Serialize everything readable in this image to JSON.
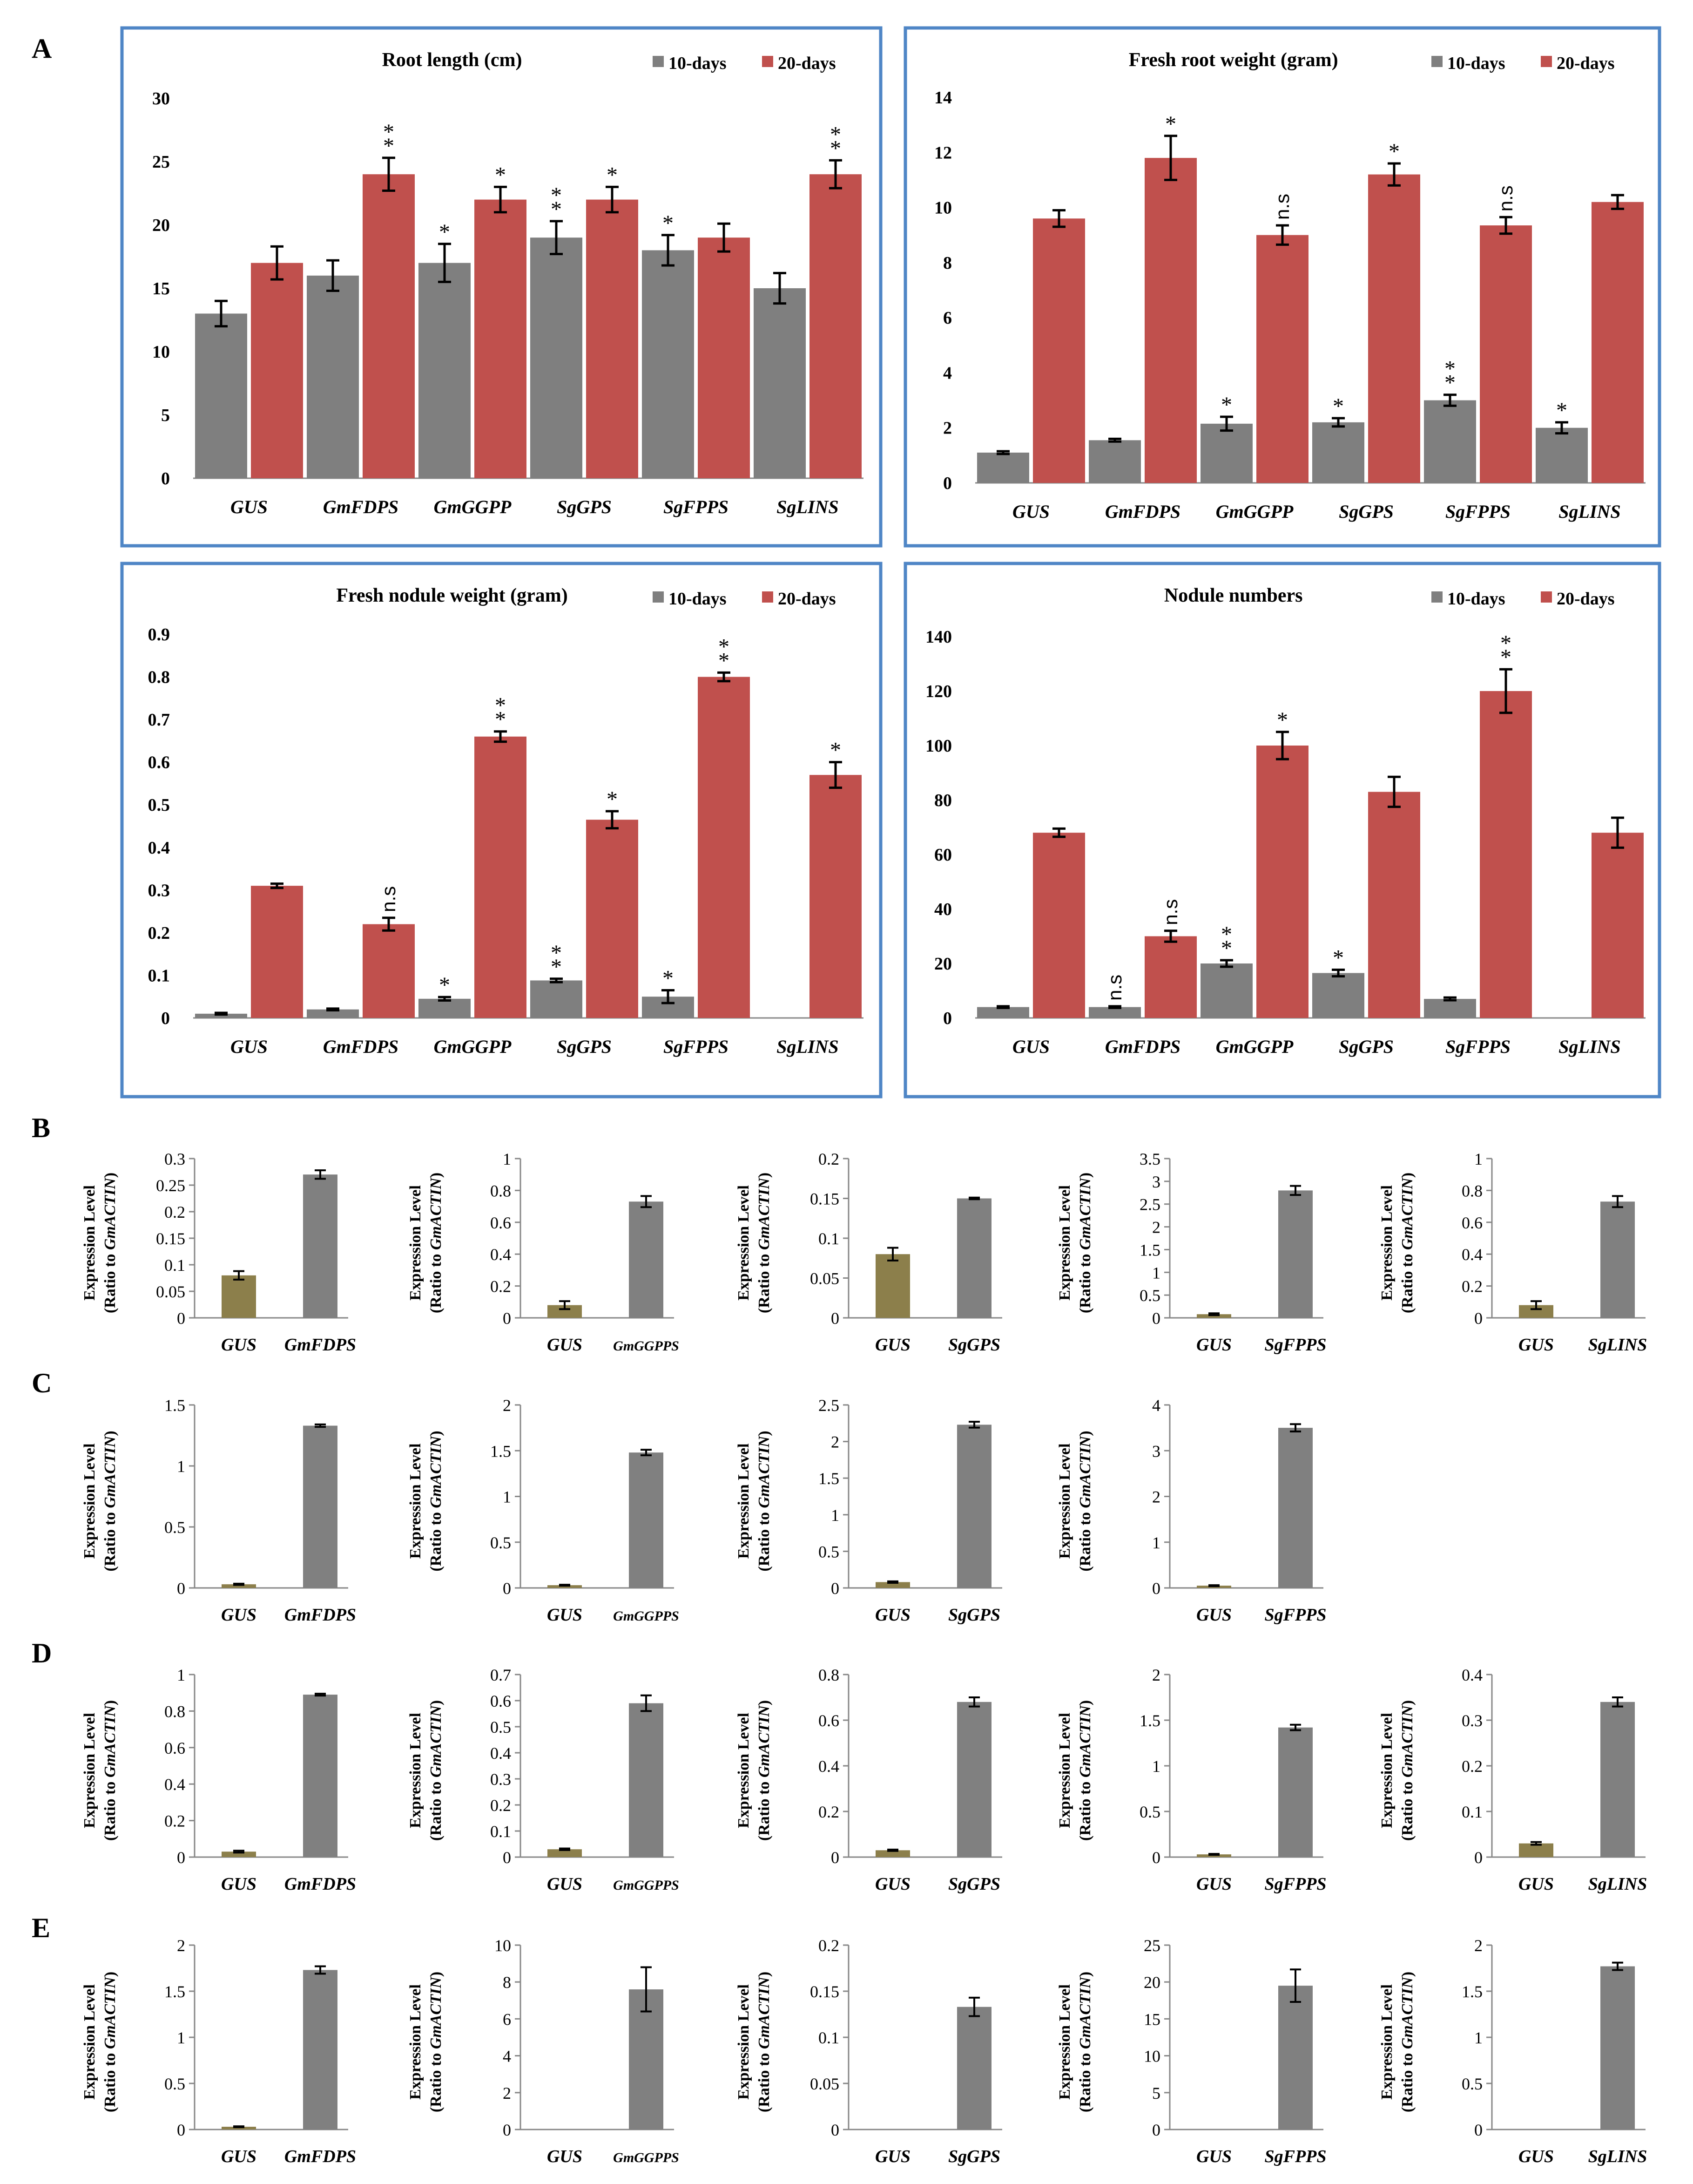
{
  "colors": {
    "day10": "#7f7f7f",
    "day20": "#c0504d",
    "gus": "#8c7f4b",
    "gene": "#808080",
    "frame": "#4f86c6",
    "axis": "#878787"
  },
  "labels": {
    "A": "A",
    "B": "B",
    "C": "C",
    "D": "D",
    "E": "E"
  },
  "panelA": [
    {
      "title": "Root length (cm)",
      "legend": [
        "10-days",
        "20-days"
      ],
      "categories": [
        "GUS",
        "GmFDPS",
        "GmGGPP",
        "SgGPS",
        "SgFPPS",
        "SgLINS"
      ],
      "ticks": [
        "0",
        "5",
        "10",
        "15",
        "20",
        "25",
        "30"
      ],
      "ymax": 30,
      "series": [
        {
          "name": "10-days",
          "values": [
            13,
            16,
            17,
            19,
            18,
            15
          ],
          "errors": [
            1,
            1.2,
            1.5,
            1.3,
            1.2,
            1.2
          ]
        },
        {
          "name": "20-days",
          "values": [
            17,
            24,
            22,
            22,
            19,
            24
          ],
          "errors": [
            1.3,
            1.3,
            1,
            1,
            1.1,
            1.1
          ]
        }
      ],
      "annotations": [
        {
          "cat": 2,
          "series": 0,
          "text": "*"
        },
        {
          "cat": 3,
          "series": 0,
          "text": "**"
        },
        {
          "cat": 4,
          "series": 0,
          "text": "*"
        },
        {
          "cat": 1,
          "series": 1,
          "text": "**"
        },
        {
          "cat": 2,
          "series": 1,
          "text": "*"
        },
        {
          "cat": 3,
          "series": 1,
          "text": "*"
        },
        {
          "cat": 5,
          "series": 1,
          "text": "**"
        }
      ]
    },
    {
      "title": "Fresh root weight (gram)",
      "legend": [
        "10-days",
        "20-days"
      ],
      "categories": [
        "GUS",
        "GmFDPS",
        "GmGGPP",
        "SgGPS",
        "SgFPPS",
        "SgLINS"
      ],
      "ticks": [
        "0",
        "2",
        "4",
        "6",
        "8",
        "10",
        "12",
        "14"
      ],
      "ymax": 14,
      "series": [
        {
          "name": "10-days",
          "values": [
            1.1,
            1.55,
            2.15,
            2.2,
            3,
            2
          ],
          "errors": [
            0.05,
            0.05,
            0.25,
            0.15,
            0.2,
            0.2
          ]
        },
        {
          "name": "20-days",
          "values": [
            9.6,
            11.8,
            9,
            11.2,
            9.35,
            10.2
          ],
          "errors": [
            0.3,
            0.8,
            0.35,
            0.4,
            0.3,
            0.25
          ]
        }
      ],
      "annotations": [
        {
          "cat": 2,
          "series": 0,
          "text": "*"
        },
        {
          "cat": 3,
          "series": 0,
          "text": "*"
        },
        {
          "cat": 4,
          "series": 0,
          "text": "**"
        },
        {
          "cat": 5,
          "series": 0,
          "text": "*"
        },
        {
          "cat": 1,
          "series": 1,
          "text": "*"
        },
        {
          "cat": 2,
          "series": 1,
          "text": "n.s"
        },
        {
          "cat": 3,
          "series": 1,
          "text": "*"
        },
        {
          "cat": 4,
          "series": 1,
          "text": "n.s"
        }
      ]
    },
    {
      "title": "Fresh nodule weight (gram)",
      "legend": [
        "10-days",
        "20-days"
      ],
      "categories": [
        "GUS",
        "GmFDPS",
        "GmGGPP",
        "SgGPS",
        "SgFPPS",
        "SgLINS"
      ],
      "ticks": [
        "0",
        "0.1",
        "0.2",
        "0.3",
        "0.4",
        "0.5",
        "0.6",
        "0.7",
        "0.8",
        "0.9"
      ],
      "ymax": 0.9,
      "series": [
        {
          "name": "10-days",
          "values": [
            0.01,
            0.02,
            0.045,
            0.088,
            0.05,
            0
          ],
          "errors": [
            0.002,
            0.002,
            0.004,
            0.004,
            0.015,
            0
          ]
        },
        {
          "name": "20-days",
          "values": [
            0.31,
            0.22,
            0.66,
            0.465,
            0.8,
            0.57
          ],
          "errors": [
            0.005,
            0.015,
            0.012,
            0.02,
            0.01,
            0.03
          ]
        }
      ],
      "annotations": [
        {
          "cat": 2,
          "series": 0,
          "text": "*"
        },
        {
          "cat": 3,
          "series": 0,
          "text": "**"
        },
        {
          "cat": 4,
          "series": 0,
          "text": "*"
        },
        {
          "cat": 1,
          "series": 1,
          "text": "n.s"
        },
        {
          "cat": 2,
          "series": 1,
          "text": "**"
        },
        {
          "cat": 3,
          "series": 1,
          "text": "*"
        },
        {
          "cat": 4,
          "series": 1,
          "text": "**"
        },
        {
          "cat": 5,
          "series": 1,
          "text": "*"
        }
      ]
    },
    {
      "title": "Nodule numbers",
      "legend": [
        "10-days",
        "20-days"
      ],
      "categories": [
        "GUS",
        "GmFDPS",
        "GmGGPP",
        "SgGPS",
        "SgFPPS",
        "SgLINS"
      ],
      "ticks": [
        "0",
        "20",
        "40",
        "60",
        "80",
        "100",
        "120",
        "140"
      ],
      "ymax": 140,
      "series": [
        {
          "name": "10-days",
          "values": [
            4,
            4,
            20,
            16.5,
            7,
            0
          ],
          "errors": [
            0.3,
            0.3,
            1.2,
            1.2,
            0.5,
            0
          ]
        },
        {
          "name": "20-days",
          "values": [
            68,
            30,
            100,
            83,
            120,
            68
          ],
          "errors": [
            1.5,
            2,
            5,
            5.5,
            8,
            5.5
          ]
        }
      ],
      "annotations": [
        {
          "cat": 1,
          "series": 0,
          "text": "n.s"
        },
        {
          "cat": 2,
          "series": 0,
          "text": "**"
        },
        {
          "cat": 3,
          "series": 0,
          "text": "*"
        },
        {
          "cat": 1,
          "series": 1,
          "text": "n.s"
        },
        {
          "cat": 2,
          "series": 1,
          "text": "*"
        },
        {
          "cat": 4,
          "series": 1,
          "text": "**"
        }
      ]
    }
  ],
  "expression": {
    "ylabel1": "Expression Level",
    "ylabel2a": "(Ratio to ",
    "ylabel2b": "GmACTIN",
    "ylabel2c": ")",
    "rows": [
      {
        "label": "B",
        "charts": [
          {
            "cats": [
              "GUS",
              "GmFDPS"
            ],
            "values": [
              0.08,
              0.27
            ],
            "errors": [
              0.008,
              0.008
            ],
            "ticks": [
              "0",
              "0.05",
              "0.1",
              "0.15",
              "0.2",
              "0.25",
              "0.3"
            ],
            "ymax": 0.3
          },
          {
            "cats": [
              "GUS",
              "GmGGPPS"
            ],
            "values": [
              0.08,
              0.73
            ],
            "errors": [
              0.025,
              0.035
            ],
            "ticks": [
              "0",
              "0.2",
              "0.4",
              "0.6",
              "0.8",
              "1"
            ],
            "ymax": 1
          },
          {
            "cats": [
              "GUS",
              "SgGPS"
            ],
            "values": [
              0.08,
              0.15
            ],
            "errors": [
              0.008,
              0.001
            ],
            "ticks": [
              "0",
              "0.05",
              "0.1",
              "0.15",
              "0.2"
            ],
            "ymax": 0.2
          },
          {
            "cats": [
              "GUS",
              "SgFPPS"
            ],
            "values": [
              0.08,
              2.8
            ],
            "errors": [
              0.02,
              0.1
            ],
            "ticks": [
              "0",
              "0.5",
              "1",
              "1.5",
              "2",
              "2.5",
              "3",
              "3.5"
            ],
            "ymax": 3.5
          },
          {
            "cats": [
              "GUS",
              "SgLINS"
            ],
            "values": [
              0.08,
              0.73
            ],
            "errors": [
              0.025,
              0.035
            ],
            "ticks": [
              "0",
              "0.2",
              "0.4",
              "0.6",
              "0.8",
              "1"
            ],
            "ymax": 1
          }
        ]
      },
      {
        "label": "C",
        "charts": [
          {
            "cats": [
              "GUS",
              "GmFDPS"
            ],
            "values": [
              0.03,
              1.33
            ],
            "errors": [
              0.005,
              0.01
            ],
            "ticks": [
              "0",
              "0.5",
              "1",
              "1.5"
            ],
            "ymax": 1.5
          },
          {
            "cats": [
              "GUS",
              "GmGGPPS"
            ],
            "values": [
              0.03,
              1.48
            ],
            "errors": [
              0.005,
              0.03
            ],
            "ticks": [
              "0",
              "0.5",
              "1",
              "1.5",
              "2"
            ],
            "ymax": 2
          },
          {
            "cats": [
              "GUS",
              "SgGPS"
            ],
            "values": [
              0.08,
              2.23
            ],
            "errors": [
              0.01,
              0.04
            ],
            "ticks": [
              "0",
              "0.5",
              "1",
              "1.5",
              "2",
              "2.5"
            ],
            "ymax": 2.5
          },
          {
            "cats": [
              "GUS",
              "SgFPPS"
            ],
            "values": [
              0.05,
              3.5
            ],
            "errors": [
              0.01,
              0.08
            ],
            "ticks": [
              "0",
              "1",
              "2",
              "3",
              "4"
            ],
            "ymax": 4
          }
        ]
      },
      {
        "label": "D",
        "charts": [
          {
            "cats": [
              "GUS",
              "GmFDPS"
            ],
            "values": [
              0.03,
              0.89
            ],
            "errors": [
              0.005,
              0.005
            ],
            "ticks": [
              "0",
              "0.2",
              "0.4",
              "0.6",
              "0.8",
              "1"
            ],
            "ymax": 1
          },
          {
            "cats": [
              "GUS",
              "GmGGPPS"
            ],
            "values": [
              0.03,
              0.59
            ],
            "errors": [
              0.003,
              0.03
            ],
            "ticks": [
              "0",
              "0.1",
              "0.2",
              "0.3",
              "0.4",
              "0.5",
              "0.6",
              "0.7"
            ],
            "ymax": 0.7
          },
          {
            "cats": [
              "GUS",
              "SgGPS"
            ],
            "values": [
              0.03,
              0.68
            ],
            "errors": [
              0.003,
              0.02
            ],
            "ticks": [
              "0",
              "0.2",
              "0.4",
              "0.6",
              "0.8"
            ],
            "ymax": 0.8
          },
          {
            "cats": [
              "GUS",
              "SgFPPS"
            ],
            "values": [
              0.03,
              1.42
            ],
            "errors": [
              0.005,
              0.03
            ],
            "ticks": [
              "0",
              "0.5",
              "1",
              "1.5",
              "2"
            ],
            "ymax": 2
          },
          {
            "cats": [
              "GUS",
              "SgLINS"
            ],
            "values": [
              0.03,
              0.34
            ],
            "errors": [
              0.003,
              0.01
            ],
            "ticks": [
              "0",
              "0.1",
              "0.2",
              "0.3",
              "0.4"
            ],
            "ymax": 0.4
          }
        ]
      },
      {
        "label": "E",
        "charts": [
          {
            "cats": [
              "GUS",
              "GmFDPS"
            ],
            "values": [
              0.03,
              1.73
            ],
            "errors": [
              0.005,
              0.04
            ],
            "ticks": [
              "0",
              "0.5",
              "1",
              "1.5",
              "2"
            ],
            "ymax": 2
          },
          {
            "cats": [
              "GUS",
              "GmGGPPS"
            ],
            "values": [
              0,
              7.6
            ],
            "errors": [
              0,
              1.2
            ],
            "ticks": [
              "0",
              "2",
              "4",
              "6",
              "8",
              "10"
            ],
            "ymax": 10
          },
          {
            "cats": [
              "GUS",
              "SgGPS"
            ],
            "values": [
              0,
              0.133
            ],
            "errors": [
              0,
              0.01
            ],
            "ticks": [
              "0",
              "0.05",
              "0.1",
              "0.15",
              "0.2"
            ],
            "ymax": 0.2
          },
          {
            "cats": [
              "GUS",
              "SgFPPS"
            ],
            "values": [
              0,
              19.5
            ],
            "errors": [
              0,
              2.2
            ],
            "ticks": [
              "0",
              "5",
              "10",
              "15",
              "20",
              "25"
            ],
            "ymax": 25
          },
          {
            "cats": [
              "GUS",
              "SgLINS"
            ],
            "values": [
              0,
              1.77
            ],
            "errors": [
              0,
              0.04
            ],
            "ticks": [
              "0",
              "0.5",
              "1",
              "1.5",
              "2"
            ],
            "ymax": 2
          }
        ]
      }
    ]
  },
  "chart_data": [
    {
      "type": "bar",
      "title": "Root length (cm)",
      "categories": [
        "GUS",
        "GmFDPS",
        "GmGGPP",
        "SgGPS",
        "SgFPPS",
        "SgLINS"
      ],
      "ylim": [
        0,
        30
      ],
      "series": [
        {
          "name": "10-days",
          "values": [
            13,
            16,
            17,
            19,
            18,
            15
          ]
        },
        {
          "name": "20-days",
          "values": [
            17,
            24,
            22,
            22,
            19,
            24
          ]
        }
      ]
    },
    {
      "type": "bar",
      "title": "Fresh root weight (gram)",
      "categories": [
        "GUS",
        "GmFDPS",
        "GmGGPP",
        "SgGPS",
        "SgFPPS",
        "SgLINS"
      ],
      "ylim": [
        0,
        14
      ],
      "series": [
        {
          "name": "10-days",
          "values": [
            1.1,
            1.55,
            2.15,
            2.2,
            3,
            2
          ]
        },
        {
          "name": "20-days",
          "values": [
            9.6,
            11.8,
            9,
            11.2,
            9.35,
            10.2
          ]
        }
      ]
    },
    {
      "type": "bar",
      "title": "Fresh nodule weight (gram)",
      "categories": [
        "GUS",
        "GmFDPS",
        "GmGGPP",
        "SgGPS",
        "SgFPPS",
        "SgLINS"
      ],
      "ylim": [
        0,
        0.9
      ],
      "series": [
        {
          "name": "10-days",
          "values": [
            0.01,
            0.02,
            0.045,
            0.088,
            0.05,
            0
          ]
        },
        {
          "name": "20-days",
          "values": [
            0.31,
            0.22,
            0.66,
            0.465,
            0.8,
            0.57
          ]
        }
      ]
    },
    {
      "type": "bar",
      "title": "Nodule numbers",
      "categories": [
        "GUS",
        "GmFDPS",
        "GmGGPP",
        "SgGPS",
        "SgFPPS",
        "SgLINS"
      ],
      "ylim": [
        0,
        140
      ],
      "series": [
        {
          "name": "10-days",
          "values": [
            4,
            4,
            20,
            16.5,
            7,
            0
          ]
        },
        {
          "name": "20-days",
          "values": [
            68,
            30,
            100,
            83,
            120,
            68
          ]
        }
      ]
    }
  ]
}
